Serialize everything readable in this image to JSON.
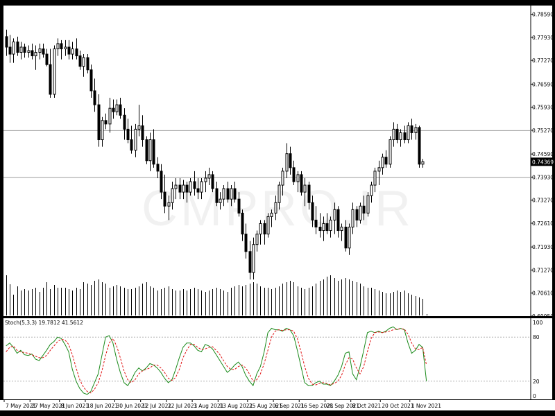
{
  "colors": {
    "frame": "#000000",
    "background": "#ffffff",
    "candle": "#000000",
    "level_line": "#9a9a9a",
    "stoch_main": "#1a8a1a",
    "stoch_signal": "#e01010",
    "grid_dotted": "#b0b0b0"
  },
  "watermark": "CMPRO.IR",
  "chart_data": [
    {
      "type": "candlestick",
      "symbol_axis": "right",
      "y_ticks": [
        "0.78590",
        "0.77930",
        "0.77270",
        "0.76590",
        "0.75930",
        "0.75270",
        "0.74590",
        "0.73930",
        "0.73270",
        "0.72610",
        "0.71930",
        "0.71270",
        "0.70610",
        "0.69950"
      ],
      "ylim": [
        0.6995,
        0.7884
      ],
      "current_price_label": "0.74369",
      "horizontal_levels": [
        0.7527,
        0.7393
      ],
      "ohlc": [
        [
          0.7795,
          0.7815,
          0.774,
          0.7765
        ],
        [
          0.7765,
          0.78,
          0.772,
          0.7745
        ],
        [
          0.7745,
          0.779,
          0.772,
          0.778
        ],
        [
          0.778,
          0.7795,
          0.774,
          0.775
        ],
        [
          0.775,
          0.778,
          0.773,
          0.7765
        ],
        [
          0.7765,
          0.7775,
          0.7735,
          0.775
        ],
        [
          0.775,
          0.777,
          0.7735,
          0.7755
        ],
        [
          0.7755,
          0.7775,
          0.773,
          0.774
        ],
        [
          0.774,
          0.777,
          0.77,
          0.775
        ],
        [
          0.775,
          0.7775,
          0.773,
          0.776
        ],
        [
          0.776,
          0.7775,
          0.7735,
          0.7745
        ],
        [
          0.7745,
          0.776,
          0.771,
          0.7715
        ],
        [
          0.7715,
          0.776,
          0.762,
          0.763
        ],
        [
          0.763,
          0.777,
          0.762,
          0.776
        ],
        [
          0.776,
          0.779,
          0.774,
          0.7775
        ],
        [
          0.7775,
          0.7785,
          0.773,
          0.776
        ],
        [
          0.776,
          0.7785,
          0.774,
          0.7765
        ],
        [
          0.7765,
          0.7785,
          0.773,
          0.7745
        ],
        [
          0.7745,
          0.778,
          0.773,
          0.776
        ],
        [
          0.776,
          0.779,
          0.773,
          0.774
        ],
        [
          0.774,
          0.7755,
          0.77,
          0.771
        ],
        [
          0.771,
          0.7745,
          0.768,
          0.7735
        ],
        [
          0.7735,
          0.7745,
          0.769,
          0.77
        ],
        [
          0.77,
          0.7715,
          0.762,
          0.764
        ],
        [
          0.764,
          0.7675,
          0.758,
          0.76
        ],
        [
          0.76,
          0.763,
          0.748,
          0.75
        ],
        [
          0.75,
          0.7565,
          0.748,
          0.7555
        ],
        [
          0.7555,
          0.7575,
          0.753,
          0.7545
        ],
        [
          0.7545,
          0.762,
          0.752,
          0.759
        ],
        [
          0.759,
          0.7615,
          0.756,
          0.758
        ],
        [
          0.758,
          0.7615,
          0.757,
          0.76
        ],
        [
          0.76,
          0.762,
          0.756,
          0.757
        ],
        [
          0.757,
          0.759,
          0.75,
          0.753
        ],
        [
          0.753,
          0.756,
          0.749,
          0.75
        ],
        [
          0.75,
          0.754,
          0.746,
          0.747
        ],
        [
          0.747,
          0.7545,
          0.745,
          0.753
        ],
        [
          0.753,
          0.76,
          0.751,
          0.754
        ],
        [
          0.754,
          0.757,
          0.748,
          0.75
        ],
        [
          0.75,
          0.751,
          0.743,
          0.744
        ],
        [
          0.744,
          0.752,
          0.741,
          0.75
        ],
        [
          0.75,
          0.753,
          0.742,
          0.743
        ],
        [
          0.743,
          0.745,
          0.739,
          0.741
        ],
        [
          0.741,
          0.743,
          0.733,
          0.735
        ],
        [
          0.735,
          0.74,
          0.729,
          0.731
        ],
        [
          0.731,
          0.734,
          0.727,
          0.732
        ],
        [
          0.732,
          0.738,
          0.73,
          0.736
        ],
        [
          0.736,
          0.739,
          0.733,
          0.737
        ],
        [
          0.737,
          0.739,
          0.733,
          0.735
        ],
        [
          0.735,
          0.7385,
          0.733,
          0.737
        ],
        [
          0.737,
          0.738,
          0.732,
          0.735
        ],
        [
          0.735,
          0.739,
          0.734,
          0.738
        ],
        [
          0.738,
          0.741,
          0.734,
          0.736
        ],
        [
          0.736,
          0.739,
          0.733,
          0.735
        ],
        [
          0.735,
          0.739,
          0.733,
          0.738
        ],
        [
          0.738,
          0.741,
          0.735,
          0.739
        ],
        [
          0.739,
          0.742,
          0.737,
          0.74
        ],
        [
          0.74,
          0.741,
          0.735,
          0.736
        ],
        [
          0.736,
          0.738,
          0.731,
          0.732
        ],
        [
          0.732,
          0.735,
          0.73,
          0.733
        ],
        [
          0.733,
          0.737,
          0.731,
          0.736
        ],
        [
          0.736,
          0.738,
          0.732,
          0.733
        ],
        [
          0.733,
          0.737,
          0.731,
          0.736
        ],
        [
          0.736,
          0.738,
          0.732,
          0.733
        ],
        [
          0.733,
          0.735,
          0.728,
          0.729
        ],
        [
          0.729,
          0.73,
          0.721,
          0.723
        ],
        [
          0.723,
          0.726,
          0.716,
          0.718
        ],
        [
          0.718,
          0.721,
          0.71,
          0.712
        ],
        [
          0.712,
          0.722,
          0.71,
          0.72
        ],
        [
          0.72,
          0.724,
          0.718,
          0.723
        ],
        [
          0.723,
          0.727,
          0.72,
          0.726
        ],
        [
          0.726,
          0.727,
          0.72,
          0.723
        ],
        [
          0.723,
          0.729,
          0.722,
          0.728
        ],
        [
          0.728,
          0.73,
          0.725,
          0.729
        ],
        [
          0.729,
          0.734,
          0.727,
          0.732
        ],
        [
          0.732,
          0.738,
          0.73,
          0.737
        ],
        [
          0.737,
          0.742,
          0.734,
          0.741
        ],
        [
          0.741,
          0.749,
          0.739,
          0.746
        ],
        [
          0.746,
          0.748,
          0.74,
          0.742
        ],
        [
          0.742,
          0.744,
          0.737,
          0.738
        ],
        [
          0.738,
          0.741,
          0.735,
          0.74
        ],
        [
          0.74,
          0.741,
          0.734,
          0.735
        ],
        [
          0.735,
          0.739,
          0.731,
          0.737
        ],
        [
          0.737,
          0.738,
          0.73,
          0.732
        ],
        [
          0.732,
          0.734,
          0.725,
          0.727
        ],
        [
          0.727,
          0.731,
          0.723,
          0.725
        ],
        [
          0.725,
          0.729,
          0.722,
          0.724
        ],
        [
          0.724,
          0.728,
          0.721,
          0.726
        ],
        [
          0.726,
          0.729,
          0.723,
          0.724
        ],
        [
          0.724,
          0.728,
          0.722,
          0.727
        ],
        [
          0.727,
          0.732,
          0.723,
          0.73
        ],
        [
          0.73,
          0.731,
          0.722,
          0.724
        ],
        [
          0.724,
          0.726,
          0.721,
          0.725
        ],
        [
          0.725,
          0.727,
          0.718,
          0.719
        ],
        [
          0.719,
          0.726,
          0.717,
          0.725
        ],
        [
          0.725,
          0.732,
          0.723,
          0.73
        ],
        [
          0.73,
          0.731,
          0.725,
          0.727
        ],
        [
          0.727,
          0.732,
          0.726,
          0.731
        ],
        [
          0.731,
          0.734,
          0.727,
          0.729
        ],
        [
          0.729,
          0.735,
          0.728,
          0.734
        ],
        [
          0.734,
          0.738,
          0.732,
          0.737
        ],
        [
          0.737,
          0.742,
          0.735,
          0.741
        ],
        [
          0.741,
          0.744,
          0.737,
          0.742
        ],
        [
          0.742,
          0.746,
          0.74,
          0.745
        ],
        [
          0.745,
          0.747,
          0.742,
          0.743
        ],
        [
          0.743,
          0.751,
          0.742,
          0.75
        ],
        [
          0.75,
          0.755,
          0.748,
          0.753
        ],
        [
          0.753,
          0.7545,
          0.749,
          0.75
        ],
        [
          0.75,
          0.753,
          0.748,
          0.752
        ],
        [
          0.752,
          0.754,
          0.749,
          0.75
        ],
        [
          0.75,
          0.755,
          0.749,
          0.754
        ],
        [
          0.754,
          0.756,
          0.75,
          0.752
        ],
        [
          0.752,
          0.7545,
          0.75,
          0.7535
        ],
        [
          0.7535,
          0.754,
          0.742,
          0.743
        ],
        [
          0.743,
          0.7445,
          0.742,
          0.7437
        ]
      ],
      "volume": [
        58,
        45,
        30,
        42,
        36,
        38,
        36,
        38,
        40,
        34,
        40,
        48,
        38,
        44,
        40,
        40,
        40,
        38,
        36,
        40,
        38,
        48,
        46,
        44,
        50,
        52,
        48,
        46,
        40,
        42,
        44,
        42,
        40,
        38,
        38,
        40,
        42,
        46,
        48,
        42,
        40,
        36,
        38,
        40,
        42,
        38,
        36,
        36,
        38,
        36,
        38,
        40,
        38,
        36,
        34,
        36,
        38,
        40,
        38,
        36,
        34,
        40,
        42,
        44,
        42,
        44,
        46,
        48,
        46,
        42,
        40,
        40,
        38,
        40,
        42,
        46,
        48,
        50,
        48,
        42,
        40,
        38,
        40,
        42,
        46,
        50,
        52,
        56,
        58,
        54,
        50,
        52,
        54,
        52,
        50,
        48,
        46,
        42,
        40,
        40,
        38,
        36,
        34,
        32,
        32,
        34,
        36,
        34,
        36,
        32,
        30,
        28,
        26,
        24,
        2
      ]
    },
    {
      "type": "line",
      "indicator_label": "Stoch(5,3,3) 19.7812 41.5612",
      "y_ticks": [
        "100",
        "80",
        "20",
        "0"
      ],
      "ylim": [
        0,
        100
      ],
      "levels": [
        80,
        20
      ],
      "x_ticks": [
        "7 May 2021",
        "27 May 2021",
        "8 Jun 2021",
        "18 Jun 2021",
        "30 Jun 2021",
        "12 Jul 2021",
        "22 Jul 2021",
        "3 Aug 2021",
        "13 Aug 2021",
        "25 Aug 2021",
        "6 Sep 2021",
        "16 Sep 2021",
        "28 Sep 2021",
        "8 Oct 2021",
        "20 Oct 2021",
        "1 Nov 2021"
      ],
      "series": [
        {
          "values": [
            68,
            72,
            66,
            58,
            62,
            56,
            55,
            57,
            50,
            48,
            55,
            62,
            70,
            74,
            80,
            78,
            70,
            60,
            36,
            20,
            10,
            4,
            2,
            6,
            18,
            30,
            55,
            80,
            82,
            72,
            50,
            32,
            18,
            14,
            22,
            32,
            38,
            34,
            38,
            44,
            42,
            38,
            32,
            24,
            18,
            22,
            36,
            52,
            66,
            72,
            72,
            68,
            62,
            60,
            70,
            68,
            64,
            56,
            48,
            40,
            32,
            36,
            42,
            46,
            40,
            28,
            20,
            14,
            30,
            40,
            60,
            86,
            92,
            90,
            90,
            88,
            92,
            90,
            82,
            62,
            40,
            18,
            14,
            14,
            18,
            20,
            16,
            16,
            14,
            20,
            28,
            40,
            58,
            60,
            30,
            22,
            40,
            62,
            86,
            88,
            86,
            88,
            86,
            88,
            92,
            94,
            90,
            92,
            90,
            72,
            58,
            62,
            70,
            66,
            20
          ]
        },
        {
          "values": [
            60,
            66,
            68,
            62,
            60,
            59,
            58,
            56,
            54,
            52,
            52,
            55,
            62,
            68,
            74,
            77,
            76,
            70,
            56,
            38,
            22,
            12,
            6,
            4,
            9,
            18,
            34,
            55,
            72,
            78,
            68,
            52,
            34,
            22,
            18,
            22,
            30,
            34,
            36,
            38,
            42,
            42,
            38,
            32,
            24,
            21,
            25,
            36,
            52,
            62,
            70,
            70,
            66,
            63,
            64,
            66,
            67,
            62,
            56,
            48,
            40,
            36,
            36,
            40,
            42,
            38,
            30,
            20,
            22,
            30,
            44,
            62,
            80,
            88,
            90,
            89,
            90,
            90,
            88,
            78,
            60,
            40,
            24,
            16,
            15,
            17,
            18,
            17,
            15,
            17,
            20,
            28,
            42,
            52,
            50,
            38,
            30,
            40,
            60,
            78,
            86,
            87,
            86,
            87,
            88,
            90,
            91,
            91,
            91,
            84,
            72,
            64,
            63,
            66,
            42
          ]
        }
      ]
    }
  ]
}
